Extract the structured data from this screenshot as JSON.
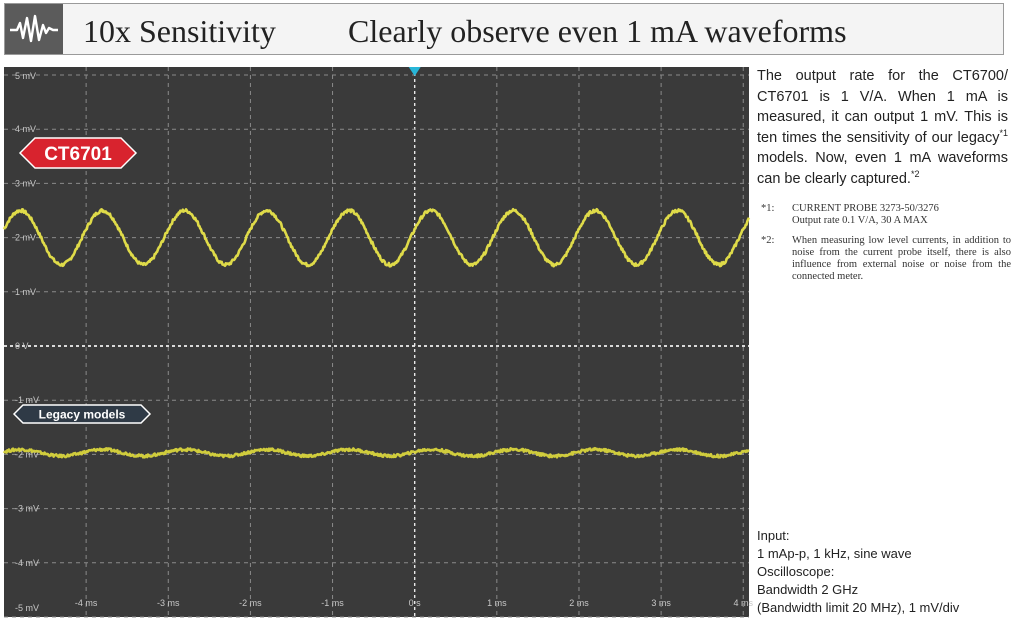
{
  "header": {
    "icon": "waveform-icon",
    "title": "10x Sensitivity",
    "subtitle": "Clearly observe even 1 mA waveforms"
  },
  "description": {
    "text1": "The output rate for the CT6700/ CT6701 is 1 V/A. When 1 mA is measured, it can output 1 mV. This is ten times the sensitivity of our legacy",
    "sup1": "*1",
    "text2": " models. Now, even 1 mA waveforms can be clearly captured.",
    "sup2": "*2"
  },
  "notes": [
    {
      "label": "*1:",
      "lines": [
        "CURRENT PROBE 3273-50/3276",
        "Output rate 0.1 V/A, 30 A MAX"
      ]
    },
    {
      "label": "*2:",
      "lines": [
        "When measuring low level currents, in addition to noise from the current probe itself, there is also influence from external noise or noise from the connected meter."
      ]
    }
  ],
  "conditions": [
    "Input:",
    "1 mAp-p, 1 kHz, sine wave",
    "Oscilloscope:",
    "Bandwidth 2 GHz",
    "(Bandwidth limit 20 MHz), 1 mV/div"
  ],
  "chart_data": {
    "type": "line",
    "xlim": [
      -5,
      4.07
    ],
    "ylim": [
      -5,
      5
    ],
    "x_ticks": [
      -4,
      -3,
      -2,
      -1,
      0,
      1,
      2,
      3,
      4
    ],
    "x_tick_labels": [
      "-4 ms",
      "-3 ms",
      "-2 ms",
      "-1 ms",
      "0 s",
      "1 ms",
      "2 ms",
      "3 ms",
      "4 ms"
    ],
    "y_ticks": [
      5,
      4,
      3,
      2,
      1,
      0,
      -1,
      -2,
      -3,
      -4,
      -5
    ],
    "y_tick_labels": [
      "5 mV",
      "4 mV",
      "3 mV",
      "2 mV",
      "1 mV",
      "0 V",
      "-1 mV",
      "-2 mV",
      "-3 mV",
      "-4 mV",
      "-5 mV"
    ],
    "grid": true,
    "series": [
      {
        "name": "CT6701",
        "color": "#e8e44a",
        "badge_color": "#d8232e",
        "waveform": "sine",
        "offset": 2.0,
        "amplitude": 0.5,
        "frequency_khz": 1,
        "peak_at_ms": -0.8
      },
      {
        "name": "Legacy models",
        "color": "#d8d43c",
        "badge_color": "#2f3a46",
        "waveform": "sine",
        "offset": -1.97,
        "amplitude": 0.06,
        "frequency_khz": 1,
        "peak_at_ms": -0.8
      }
    ]
  }
}
